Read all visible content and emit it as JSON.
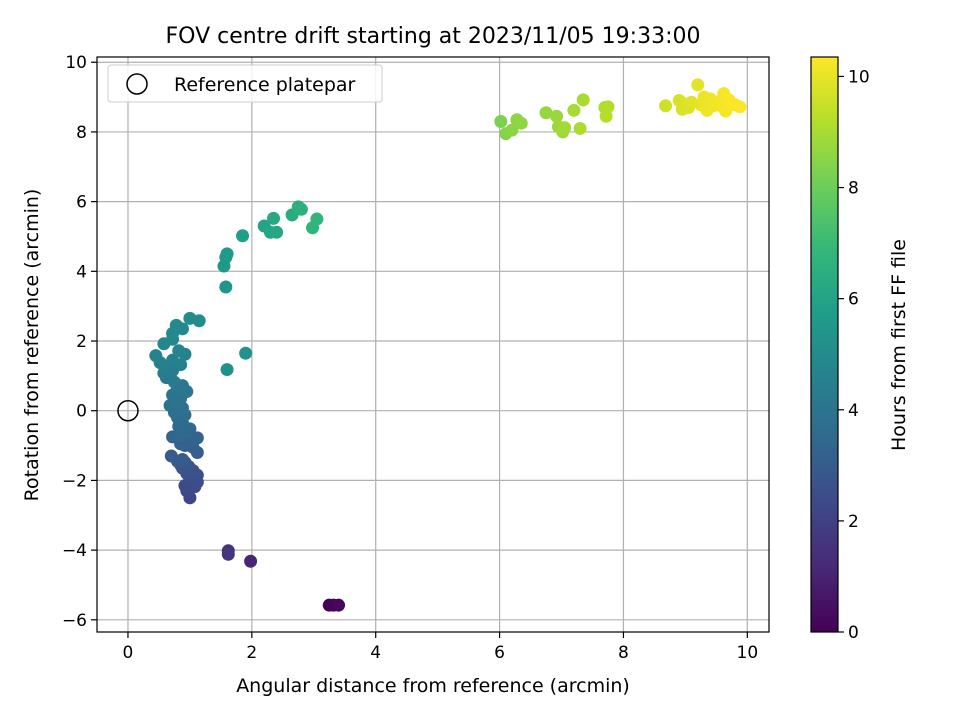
{
  "chart_data": {
    "type": "scatter",
    "title": "FOV centre drift starting at 2023/11/05 19:33:00",
    "xlabel": "Angular distance from reference (arcmin)",
    "ylabel": "Rotation from reference (arcmin)",
    "xlim": [
      -0.5,
      10.35
    ],
    "ylim": [
      -6.35,
      10.15
    ],
    "xticks": [
      0,
      2,
      4,
      6,
      8,
      10
    ],
    "yticks": [
      -6,
      -4,
      -2,
      0,
      2,
      4,
      6,
      8,
      10
    ],
    "grid": true,
    "legend": {
      "placement": "top-left",
      "entries": [
        "Reference platepar"
      ]
    },
    "reference_point": {
      "x": 0,
      "y": 0,
      "label": "Reference platepar"
    },
    "colorbar": {
      "label": "Hours from first FF file",
      "range": [
        0,
        10.35
      ],
      "ticks": [
        0,
        2,
        4,
        6,
        8,
        10
      ],
      "colormap": "viridis",
      "colors": [
        "#440154",
        "#482878",
        "#3e4989",
        "#31688e",
        "#26828e",
        "#1f9e89",
        "#35b779",
        "#6ece58",
        "#b5de2b",
        "#fde725"
      ]
    },
    "points": [
      {
        "x": 3.25,
        "y": -5.58,
        "c": 0.05
      },
      {
        "x": 3.32,
        "y": -5.58,
        "c": 0.12
      },
      {
        "x": 3.4,
        "y": -5.58,
        "c": 0.2
      },
      {
        "x": 1.98,
        "y": -4.32,
        "c": 1.1
      },
      {
        "x": 1.62,
        "y": -4.02,
        "c": 1.5
      },
      {
        "x": 1.62,
        "y": -4.12,
        "c": 1.6
      },
      {
        "x": 1.0,
        "y": -2.5,
        "c": 2.2
      },
      {
        "x": 0.95,
        "y": -2.3,
        "c": 2.3
      },
      {
        "x": 1.08,
        "y": -2.18,
        "c": 2.35
      },
      {
        "x": 0.92,
        "y": -2.15,
        "c": 2.4
      },
      {
        "x": 1.12,
        "y": -2.05,
        "c": 2.45
      },
      {
        "x": 1.0,
        "y": -1.95,
        "c": 2.5
      },
      {
        "x": 1.12,
        "y": -1.85,
        "c": 2.55
      },
      {
        "x": 0.95,
        "y": -1.8,
        "c": 2.6
      },
      {
        "x": 1.05,
        "y": -1.72,
        "c": 2.65
      },
      {
        "x": 0.88,
        "y": -1.65,
        "c": 2.7
      },
      {
        "x": 0.98,
        "y": -1.6,
        "c": 2.75
      },
      {
        "x": 0.85,
        "y": -1.55,
        "c": 2.8
      },
      {
        "x": 0.92,
        "y": -1.48,
        "c": 2.85
      },
      {
        "x": 0.8,
        "y": -1.45,
        "c": 2.9
      },
      {
        "x": 0.7,
        "y": -1.3,
        "c": 2.95
      },
      {
        "x": 0.88,
        "y": -1.4,
        "c": 3.0
      },
      {
        "x": 1.12,
        "y": -1.2,
        "c": 3.05
      },
      {
        "x": 1.05,
        "y": -1.05,
        "c": 3.1
      },
      {
        "x": 0.92,
        "y": -1.0,
        "c": 3.15
      },
      {
        "x": 0.85,
        "y": -0.95,
        "c": 3.2
      },
      {
        "x": 0.98,
        "y": -0.9,
        "c": 3.25
      },
      {
        "x": 1.12,
        "y": -0.78,
        "c": 3.3
      },
      {
        "x": 0.72,
        "y": -0.75,
        "c": 3.35
      },
      {
        "x": 0.85,
        "y": -0.72,
        "c": 3.4
      },
      {
        "x": 0.95,
        "y": -0.62,
        "c": 3.45
      },
      {
        "x": 1.0,
        "y": -0.52,
        "c": 3.5
      },
      {
        "x": 0.82,
        "y": -0.45,
        "c": 3.55
      },
      {
        "x": 0.88,
        "y": -0.35,
        "c": 3.6
      },
      {
        "x": 0.8,
        "y": -0.2,
        "c": 3.65
      },
      {
        "x": 0.92,
        "y": -0.12,
        "c": 3.7
      },
      {
        "x": 0.75,
        "y": -0.05,
        "c": 3.75
      },
      {
        "x": 0.88,
        "y": 0.08,
        "c": 3.8
      },
      {
        "x": 0.68,
        "y": 0.15,
        "c": 3.85
      },
      {
        "x": 0.78,
        "y": 0.25,
        "c": 3.9
      },
      {
        "x": 0.85,
        "y": 0.35,
        "c": 3.95
      },
      {
        "x": 0.72,
        "y": 0.45,
        "c": 4.0
      },
      {
        "x": 0.95,
        "y": 0.55,
        "c": 4.05
      },
      {
        "x": 0.8,
        "y": 0.62,
        "c": 4.1
      },
      {
        "x": 0.88,
        "y": 0.72,
        "c": 4.15
      },
      {
        "x": 0.75,
        "y": 0.82,
        "c": 4.2
      },
      {
        "x": 0.62,
        "y": 0.95,
        "c": 4.25
      },
      {
        "x": 0.58,
        "y": 1.08,
        "c": 4.3
      },
      {
        "x": 0.72,
        "y": 1.15,
        "c": 4.35
      },
      {
        "x": 0.62,
        "y": 1.25,
        "c": 4.4
      },
      {
        "x": 0.85,
        "y": 1.32,
        "c": 4.45
      },
      {
        "x": 0.52,
        "y": 1.38,
        "c": 4.5
      },
      {
        "x": 0.72,
        "y": 1.45,
        "c": 4.55
      },
      {
        "x": 0.45,
        "y": 1.58,
        "c": 4.6
      },
      {
        "x": 0.92,
        "y": 1.62,
        "c": 4.65
      },
      {
        "x": 0.82,
        "y": 1.72,
        "c": 4.7
      },
      {
        "x": 0.58,
        "y": 1.92,
        "c": 4.75
      },
      {
        "x": 0.72,
        "y": 2.05,
        "c": 4.8
      },
      {
        "x": 0.72,
        "y": 2.22,
        "c": 4.85
      },
      {
        "x": 0.88,
        "y": 2.35,
        "c": 4.9
      },
      {
        "x": 0.78,
        "y": 2.45,
        "c": 4.95
      },
      {
        "x": 1.0,
        "y": 2.65,
        "c": 5.0
      },
      {
        "x": 1.15,
        "y": 2.58,
        "c": 5.05
      },
      {
        "x": 1.6,
        "y": 1.18,
        "c": 5.2
      },
      {
        "x": 1.9,
        "y": 1.65,
        "c": 5.3
      },
      {
        "x": 1.58,
        "y": 3.55,
        "c": 5.4
      },
      {
        "x": 1.55,
        "y": 4.15,
        "c": 5.5
      },
      {
        "x": 1.58,
        "y": 4.4,
        "c": 5.55
      },
      {
        "x": 1.6,
        "y": 4.5,
        "c": 5.6
      },
      {
        "x": 1.85,
        "y": 5.02,
        "c": 5.8
      },
      {
        "x": 2.2,
        "y": 5.3,
        "c": 6.0
      },
      {
        "x": 2.3,
        "y": 5.12,
        "c": 6.1
      },
      {
        "x": 2.4,
        "y": 5.12,
        "c": 6.15
      },
      {
        "x": 2.35,
        "y": 5.52,
        "c": 6.2
      },
      {
        "x": 2.65,
        "y": 5.62,
        "c": 6.4
      },
      {
        "x": 2.75,
        "y": 5.85,
        "c": 6.5
      },
      {
        "x": 2.8,
        "y": 5.78,
        "c": 6.55
      },
      {
        "x": 2.98,
        "y": 5.25,
        "c": 6.7
      },
      {
        "x": 3.05,
        "y": 5.5,
        "c": 6.75
      },
      {
        "x": 6.02,
        "y": 8.3,
        "c": 8.3
      },
      {
        "x": 6.1,
        "y": 7.95,
        "c": 8.4
      },
      {
        "x": 6.2,
        "y": 8.05,
        "c": 8.5
      },
      {
        "x": 6.28,
        "y": 8.35,
        "c": 8.55
      },
      {
        "x": 6.35,
        "y": 8.25,
        "c": 8.6
      },
      {
        "x": 6.75,
        "y": 8.55,
        "c": 8.7
      },
      {
        "x": 6.92,
        "y": 8.45,
        "c": 8.75
      },
      {
        "x": 6.95,
        "y": 8.15,
        "c": 8.8
      },
      {
        "x": 7.02,
        "y": 8.0,
        "c": 8.85
      },
      {
        "x": 7.05,
        "y": 8.12,
        "c": 8.9
      },
      {
        "x": 7.2,
        "y": 8.62,
        "c": 8.95
      },
      {
        "x": 7.35,
        "y": 8.92,
        "c": 9.0
      },
      {
        "x": 7.3,
        "y": 8.1,
        "c": 9.05
      },
      {
        "x": 7.7,
        "y": 8.7,
        "c": 9.1
      },
      {
        "x": 7.75,
        "y": 8.72,
        "c": 9.15
      },
      {
        "x": 7.72,
        "y": 8.45,
        "c": 9.2
      },
      {
        "x": 8.68,
        "y": 8.75,
        "c": 9.6
      },
      {
        "x": 8.9,
        "y": 8.9,
        "c": 9.7
      },
      {
        "x": 8.95,
        "y": 8.65,
        "c": 9.75
      },
      {
        "x": 9.0,
        "y": 8.8,
        "c": 9.8
      },
      {
        "x": 9.05,
        "y": 8.7,
        "c": 9.85
      },
      {
        "x": 9.1,
        "y": 8.85,
        "c": 9.9
      },
      {
        "x": 9.2,
        "y": 9.35,
        "c": 9.95
      },
      {
        "x": 9.25,
        "y": 8.78,
        "c": 10.0
      },
      {
        "x": 9.3,
        "y": 9.0,
        "c": 10.05
      },
      {
        "x": 9.35,
        "y": 8.62,
        "c": 10.1
      },
      {
        "x": 9.4,
        "y": 8.95,
        "c": 10.12
      },
      {
        "x": 9.45,
        "y": 8.75,
        "c": 10.15
      },
      {
        "x": 9.55,
        "y": 8.88,
        "c": 10.18
      },
      {
        "x": 9.6,
        "y": 8.72,
        "c": 10.2
      },
      {
        "x": 9.62,
        "y": 9.1,
        "c": 10.22
      },
      {
        "x": 9.65,
        "y": 8.6,
        "c": 10.25
      },
      {
        "x": 9.7,
        "y": 8.92,
        "c": 10.28
      },
      {
        "x": 9.75,
        "y": 8.8,
        "c": 10.3
      },
      {
        "x": 9.8,
        "y": 8.78,
        "c": 10.32
      },
      {
        "x": 9.88,
        "y": 8.72,
        "c": 10.34
      }
    ]
  }
}
